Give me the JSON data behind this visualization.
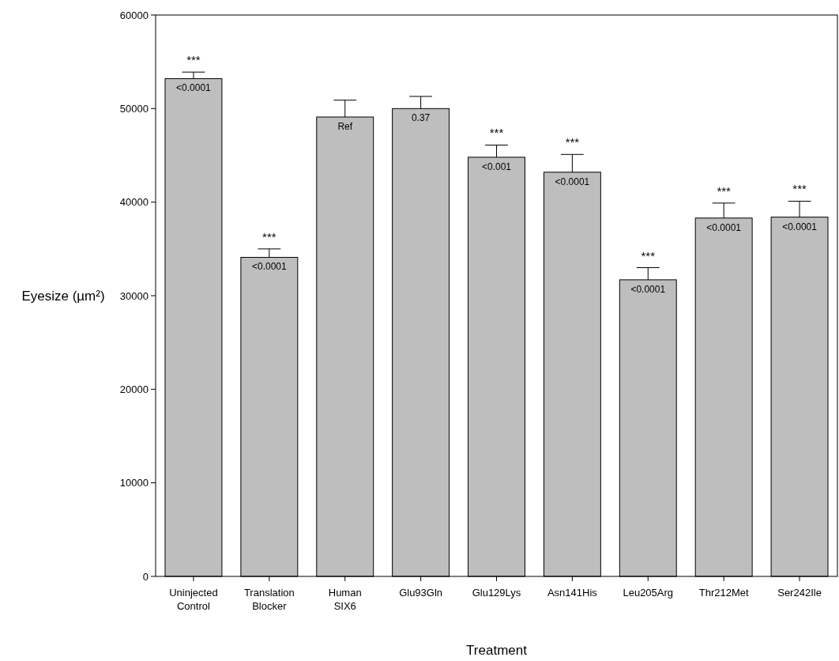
{
  "chart_data": {
    "type": "bar",
    "xlabel": "Treatment",
    "ylabel": "Eyesize (µm²)",
    "categories": [
      "Uninjected Control",
      "Translation Blocker",
      "Human SIX6",
      "Glu93Gln",
      "Glu129Lys",
      "Asn141His",
      "Leu205Arg",
      "Thr212Met",
      "Ser242Ile"
    ],
    "values": [
      53200,
      34100,
      49100,
      50000,
      44800,
      43200,
      31700,
      38300,
      38400
    ],
    "errors": [
      [
        53200,
        53900
      ],
      [
        34100,
        35000
      ],
      [
        49100,
        50900
      ],
      [
        50000,
        51300
      ],
      [
        44800,
        46100
      ],
      [
        43200,
        45100
      ],
      [
        31700,
        33000
      ],
      [
        38300,
        39900
      ],
      [
        38400,
        40100
      ]
    ],
    "color": "#bebebe",
    "ylim": [
      0,
      60000
    ],
    "yticks": [
      0,
      10000,
      20000,
      30000,
      40000,
      50000,
      60000
    ],
    "grid": false,
    "annotations": [
      {
        "text": "<0.0001",
        "x": "Uninjected Control",
        "y": 53200
      },
      {
        "text": "<0.0001",
        "x": "Translation Blocker",
        "y": 34100
      },
      {
        "text": "Ref",
        "x": "Human SIX6",
        "y": 49100
      },
      {
        "text": "0.37",
        "x": "Glu93Gln",
        "y": 50000
      },
      {
        "text": "<0.001",
        "x": "Glu129Lys",
        "y": 44800
      },
      {
        "text": "<0.0001",
        "x": "Asn141His",
        "y": 43200
      },
      {
        "text": "<0.0001",
        "x": "Leu205Arg",
        "y": 31700
      },
      {
        "text": "<0.0001",
        "x": "Thr212Met",
        "y": 38300
      },
      {
        "text": "<0.0001",
        "x": "Ser242Ile",
        "y": 38400
      },
      {
        "text": "***",
        "x": "Uninjected Control",
        "y": 53900
      },
      {
        "text": "***",
        "x": "Translation Blocker",
        "y": 35000
      },
      {
        "text": "***",
        "x": "Glu129Lys",
        "y": 46100
      },
      {
        "text": "***",
        "x": "Asn141His",
        "y": 45100
      },
      {
        "text": "***",
        "x": "Leu205Arg",
        "y": 33000
      },
      {
        "text": "***",
        "x": "Thr212Met",
        "y": 39900
      },
      {
        "text": "***",
        "x": "Ser242Ile",
        "y": 40100
      }
    ]
  }
}
